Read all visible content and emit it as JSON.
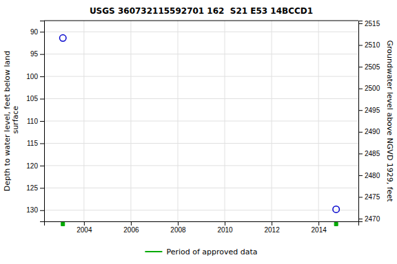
{
  "chart_data": {
    "type": "scatter",
    "title": "USGS 360732115592701 162  S21 E53 14BCCD1",
    "ylabel": "Depth to water level, feet below land\n surface",
    "y2label": "Groundwater level above NGVD 1929, feet",
    "xlim": [
      2002.3,
      2015.7
    ],
    "xticks": [
      2004,
      2006,
      2008,
      2010,
      2012,
      2014
    ],
    "ylim": [
      132.5,
      87.5
    ],
    "yticks": [
      90,
      95,
      100,
      105,
      110,
      115,
      120,
      125,
      130
    ],
    "y2lim": [
      2469.375,
      2515.625
    ],
    "y2ticks": [
      2470,
      2475,
      2480,
      2485,
      2490,
      2495,
      2500,
      2505,
      2510,
      2515
    ],
    "grid": true,
    "legend": "bottom",
    "series": [
      {
        "x": [
          2003.1,
          2014.75
        ],
        "values": [
          91.4,
          129.8
        ],
        "color": "#0000cc",
        "marker": "circle"
      },
      {
        "name": "Period of approved data",
        "x": [
          2003.1,
          2014.75
        ],
        "color": "#00aa00",
        "marker": "square"
      }
    ]
  }
}
